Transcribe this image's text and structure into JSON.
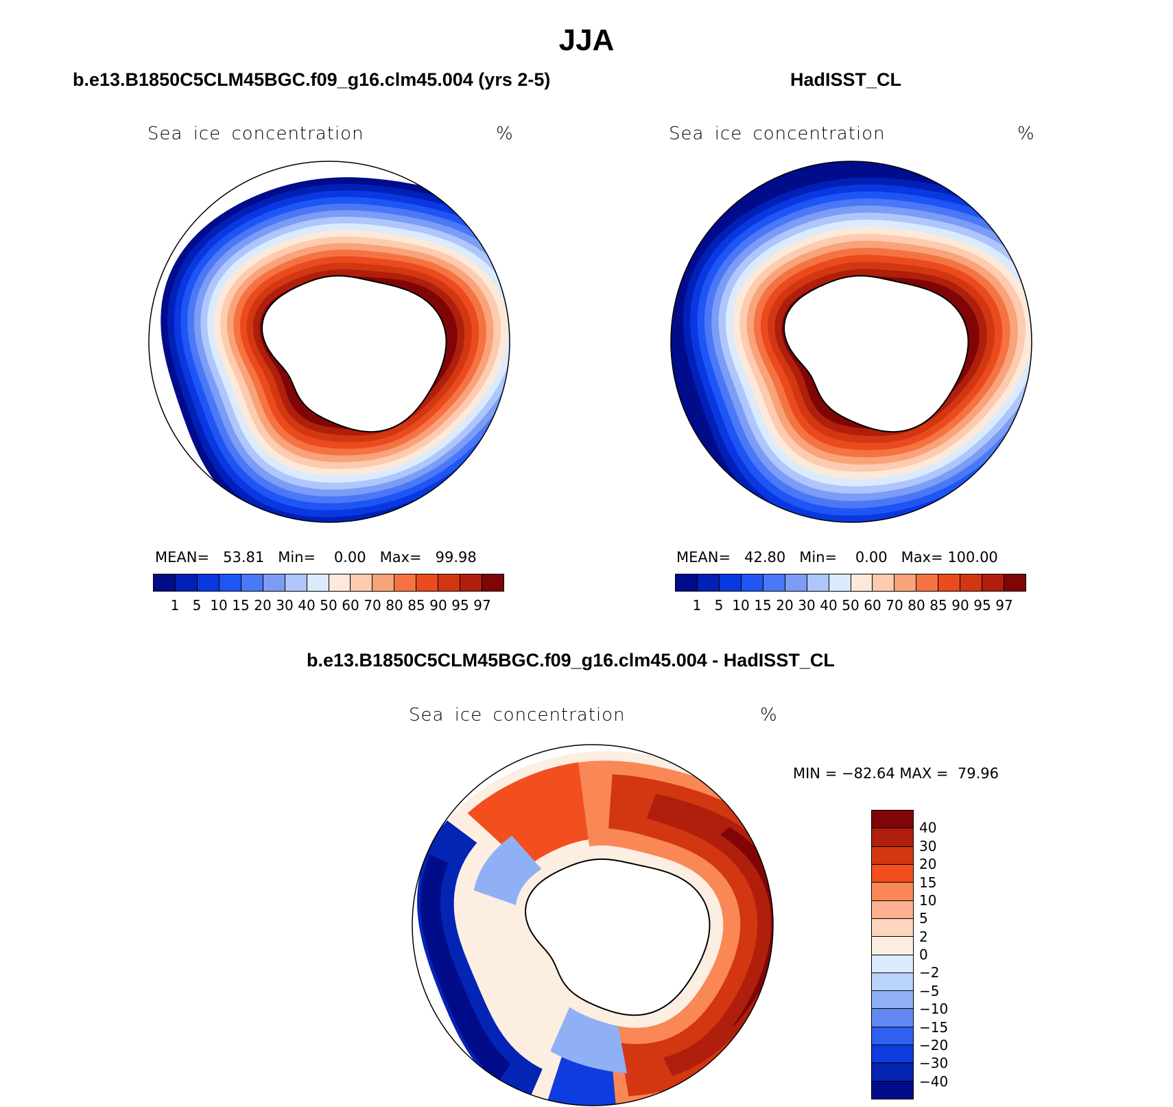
{
  "title": "JJA",
  "colors": {
    "abs_scale": [
      "#000c8a",
      "#0020b8",
      "#0a38e0",
      "#1f55f5",
      "#4a78f7",
      "#7c9cf5",
      "#aec6fb",
      "#d9ebfd",
      "#fde9d9",
      "#fccbb0",
      "#f9a37a",
      "#f57342",
      "#ea4a1e",
      "#d23712",
      "#b01f0c",
      "#7f0506"
    ],
    "diff_scale": [
      "#7f0506",
      "#b01f0c",
      "#d23712",
      "#f24e1e",
      "#f98856",
      "#fbb091",
      "#fcd5bf",
      "#fdeee2",
      "#d9ebfd",
      "#b9d3f9",
      "#8fb0f5",
      "#6289f3",
      "#2f60f0",
      "#0e3cde",
      "#0424b4",
      "#000c8a"
    ],
    "land": "#ffffff",
    "outline": "#000000"
  },
  "panels": [
    {
      "run_title": "b.e13.B1850C5CLM45BGC.f09_g16.clm45.004 (yrs 2-5)",
      "variable": "Sea ice concentration",
      "units": "%",
      "stats": {
        "mean_label": "MEAN=",
        "mean": "53.81",
        "min_label": "Min=",
        "min": "0.00",
        "max_label": "Max=",
        "max": "99.98"
      },
      "colorbar_labels": [
        "1",
        "5",
        "10",
        "15",
        "20",
        "30",
        "40",
        "50",
        "60",
        "70",
        "80",
        "85",
        "90",
        "95",
        "97"
      ]
    },
    {
      "run_title": "HadISST_CL",
      "variable": "Sea ice concentration",
      "units": "%",
      "stats": {
        "mean_label": "MEAN=",
        "mean": "42.80",
        "min_label": "Min=",
        "min": "0.00",
        "max_label": "Max=",
        "max": "100.00"
      },
      "colorbar_labels": [
        "1",
        "5",
        "10",
        "15",
        "20",
        "30",
        "40",
        "50",
        "60",
        "70",
        "80",
        "85",
        "90",
        "95",
        "97"
      ]
    }
  ],
  "difference": {
    "run_title": "b.e13.B1850C5CLM45BGC.f09_g16.clm45.004 - HadISST_CL",
    "variable": "Sea ice concentration",
    "units": "%",
    "min_label": "MIN =",
    "min": "−82.64",
    "max_label": "MAX =",
    "max": "79.96",
    "colorbar_labels": [
      "40",
      "30",
      "20",
      "15",
      "10",
      "5",
      "2",
      "0",
      "−2",
      "−5",
      "−10",
      "−15",
      "−20",
      "−30",
      "−40"
    ]
  }
}
